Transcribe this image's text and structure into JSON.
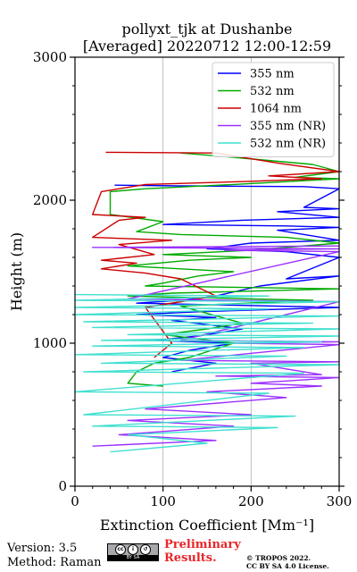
{
  "title_line1": "pollyxt_tjk at Dushanbe",
  "title_line2": "[Averaged] 20220712 12:00-12:59",
  "footer": {
    "version": "Version: 3.5",
    "method": "Method: Raman",
    "cc_badge_text": "BY   SA",
    "preliminary_line1": "Preliminary",
    "preliminary_line2": "Results.",
    "copyright_line1": "© TROPOS 2022.",
    "copyright_line2": "CC BY SA 4.0 License."
  },
  "chart_data": {
    "type": "line",
    "title": "pollyxt_tjk at Dushanbe\n[Averaged] 20220712 12:00-12:59",
    "xlabel": "Extinction Coefficient [Mm⁻¹]",
    "ylabel": "Height (m)",
    "xlim": [
      0,
      300
    ],
    "ylim": [
      0,
      3000
    ],
    "xticks": [
      0,
      100,
      200,
      300
    ],
    "yticks": [
      0,
      1000,
      2000,
      3000
    ],
    "grid": "vertical",
    "legend_position": "top-right",
    "series": [
      {
        "name": "355 nm",
        "color": "#0000ff",
        "x": [
          45,
          120,
          260,
          300,
          260,
          300,
          230,
          300,
          190,
          100,
          240,
          300,
          230,
          300,
          200,
          150,
          240,
          300,
          240,
          300,
          210,
          160,
          120,
          70,
          300,
          140,
          70,
          160,
          110,
          190,
          140,
          90,
          180,
          130,
          100,
          160,
          110
        ],
        "y": [
          2105,
          2100,
          2095,
          2080,
          1950,
          1940,
          1920,
          1880,
          1860,
          1830,
          1820,
          1810,
          1790,
          1720,
          1700,
          1660,
          1640,
          1600,
          1450,
          1470,
          1400,
          1330,
          1300,
          1280,
          1250,
          1220,
          1200,
          1180,
          1160,
          1100,
          1050,
          1020,
          1000,
          950,
          900,
          860,
          800
        ]
      },
      {
        "name": "532 nm",
        "color": "#00aa00",
        "x": [
          120,
          180,
          270,
          300,
          250,
          300,
          180,
          80,
          40,
          40,
          100,
          70,
          120,
          240,
          300,
          200,
          100,
          200,
          130,
          60,
          180,
          140,
          100,
          80,
          300,
          110,
          60,
          270,
          120,
          190,
          150,
          100,
          180,
          130,
          90,
          70,
          60,
          100
        ],
        "y": [
          2330,
          2300,
          2250,
          2200,
          2160,
          2150,
          2110,
          2080,
          2060,
          1900,
          1850,
          1780,
          1760,
          1740,
          1700,
          1650,
          1620,
          1600,
          1580,
          1540,
          1500,
          1470,
          1420,
          1400,
          1380,
          1350,
          1330,
          1300,
          1260,
          1140,
          1100,
          1060,
          1000,
          900,
          860,
          800,
          720,
          700
        ]
      },
      {
        "name": "1064 nm",
        "color": "#cc0000",
        "x": [
          35,
          160,
          230,
          300,
          220,
          280,
          190,
          80,
          30,
          20,
          80,
          50,
          20,
          110,
          50,
          90,
          30,
          70,
          30,
          80,
          120,
          160,
          130,
          80,
          110,
          90
        ],
        "y": [
          2335,
          2330,
          2260,
          2200,
          2170,
          2150,
          2130,
          2110,
          2060,
          1900,
          1880,
          1860,
          1740,
          1720,
          1690,
          1620,
          1580,
          1560,
          1520,
          1490,
          1450,
          1330,
          1300,
          1250,
          1000,
          900
        ]
      },
      {
        "name": "355 nm (NR)",
        "color": "#9b30ff",
        "x": [
          300,
          20,
          300,
          170,
          300,
          60,
          300,
          120,
          300,
          180,
          300,
          120,
          300,
          200,
          280,
          160,
          300,
          200,
          280,
          150,
          240,
          80,
          200,
          60,
          180,
          50,
          160,
          20
        ],
        "y": [
          1680,
          1670,
          1660,
          1650,
          1640,
          1310,
          1290,
          1020,
          1010,
          1000,
          990,
          880,
          870,
          860,
          780,
          770,
          760,
          720,
          700,
          660,
          620,
          540,
          500,
          460,
          420,
          360,
          320,
          280
        ]
      },
      {
        "name": "532 nm (NR)",
        "color": "#40e0d0",
        "x": [
          0,
          220,
          0,
          300,
          0,
          220,
          0,
          300,
          10,
          270,
          20,
          300,
          60,
          300,
          30,
          280,
          20,
          260,
          0,
          240,
          30,
          300,
          10,
          260,
          0,
          220,
          10,
          250,
          20,
          230,
          60,
          150,
          40
        ],
        "y": [
          1340,
          1330,
          1300,
          1290,
          1250,
          1240,
          1200,
          1190,
          1150,
          1140,
          1110,
          1100,
          1060,
          1050,
          1020,
          1010,
          980,
          970,
          920,
          910,
          860,
          850,
          800,
          790,
          660,
          650,
          500,
          490,
          420,
          410,
          360,
          300,
          240
        ]
      }
    ]
  }
}
